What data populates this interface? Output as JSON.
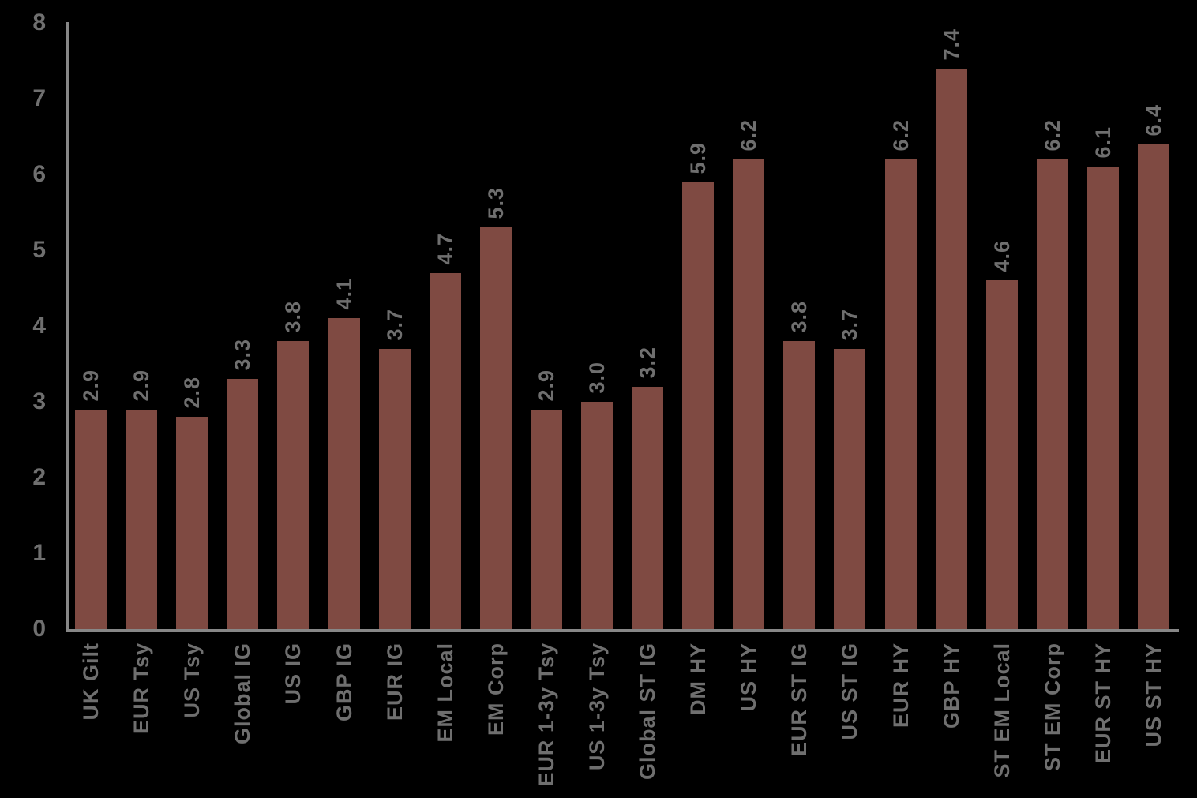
{
  "chart_data": {
    "type": "bar",
    "title": "",
    "xlabel": "",
    "ylabel": "",
    "categories": [
      "UK Gilt",
      "EUR Tsy",
      "US Tsy",
      "Global IG",
      "US IG",
      "GBP IG",
      "EUR IG",
      "EM Local",
      "EM Corp",
      "EUR 1-3y Tsy",
      "US 1-3y Tsy",
      "Global ST IG",
      "DM HY",
      "US HY",
      "EUR ST IG",
      "US ST IG",
      "EUR HY",
      "GBP HY",
      "ST EM Local",
      "ST EM Corp",
      "EUR ST HY",
      "US ST HY"
    ],
    "values": [
      2.9,
      2.9,
      2.8,
      3.3,
      3.8,
      4.1,
      3.7,
      4.7,
      5.3,
      2.9,
      3.0,
      3.2,
      5.9,
      6.2,
      3.8,
      3.7,
      6.2,
      7.4,
      4.6,
      6.2,
      6.1,
      6.4
    ],
    "value_labels": [
      "2.9",
      "2.9",
      "2.8",
      "3.3",
      "3.8",
      "4.1",
      "3.7",
      "4.7",
      "5.3",
      "2.9",
      "3.0",
      "3.2",
      "5.9",
      "6.2",
      "3.8",
      "3.7",
      "6.2",
      "7.4",
      "4.6",
      "6.2",
      "6.1",
      "6.4"
    ],
    "ylim": [
      0,
      8
    ],
    "yticks": [
      "0",
      "1",
      "2",
      "3",
      "4",
      "5",
      "6",
      "7",
      "8"
    ],
    "grid": false,
    "legend": false,
    "bar_label_rotation_deg": -90,
    "x_label_rotation_deg": -90,
    "colors": {
      "bar": "#7F4A42",
      "text": "#6F6F6F",
      "axis": "#878787",
      "background": "#000000"
    }
  }
}
